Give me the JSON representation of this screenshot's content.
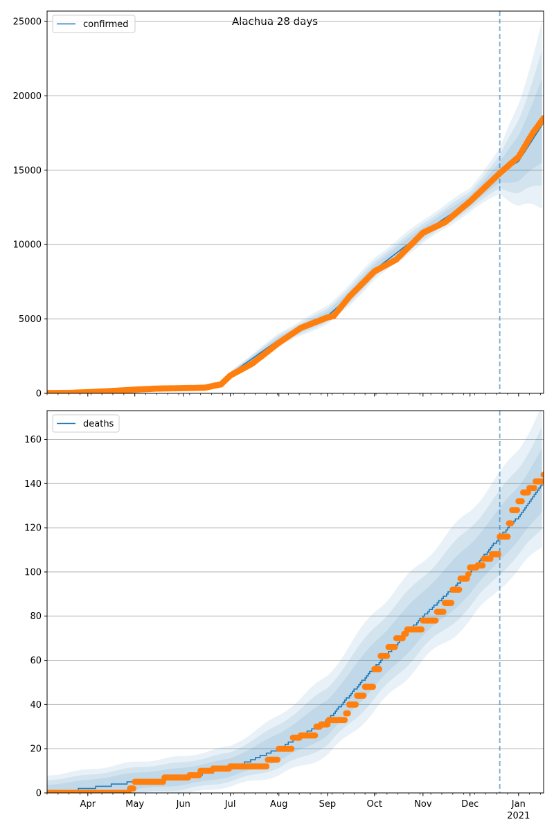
{
  "figure": {
    "title": "Alachua 28 days"
  },
  "chart_data": [
    {
      "type": "line",
      "legend": "confirmed",
      "legend_position": "top-left",
      "grid": "y",
      "xlim": [
        "2020-03-06",
        "2021-01-17"
      ],
      "ylim": [
        0,
        25700
      ],
      "x_tick_labels": [
        {
          "date": "2020-04-01",
          "label": "Apr"
        },
        {
          "date": "2020-05-01",
          "label": "May"
        },
        {
          "date": "2020-06-01",
          "label": "Jun"
        },
        {
          "date": "2020-07-01",
          "label": "Jul"
        },
        {
          "date": "2020-08-01",
          "label": "Aug"
        },
        {
          "date": "2020-09-01",
          "label": "Sep"
        },
        {
          "date": "2020-10-01",
          "label": "Oct"
        },
        {
          "date": "2020-11-01",
          "label": "Nov"
        },
        {
          "date": "2020-12-01",
          "label": "Dec"
        },
        {
          "date": "2021-01-01",
          "label": "Jan"
        }
      ],
      "x_tick_sublabel": "",
      "y_ticks": [
        0,
        5000,
        10000,
        15000,
        20000,
        25000
      ],
      "vline": "2020-12-20",
      "model": [
        [
          "2020-03-06",
          0
        ],
        [
          "2020-04-01",
          80
        ],
        [
          "2020-05-01",
          250
        ],
        [
          "2020-06-01",
          350
        ],
        [
          "2020-06-25",
          480
        ],
        [
          "2020-07-01",
          1300
        ],
        [
          "2020-08-01",
          3600
        ],
        [
          "2020-09-01",
          5200
        ],
        [
          "2020-09-15",
          6500
        ],
        [
          "2020-10-01",
          8300
        ],
        [
          "2020-11-01",
          10800
        ],
        [
          "2020-12-01",
          12900
        ],
        [
          "2020-12-20",
          14800
        ],
        [
          "2021-01-01",
          15600
        ],
        [
          "2021-01-17",
          18200
        ]
      ],
      "band_spread": [
        [
          "2020-03-06",
          0
        ],
        [
          "2020-06-25",
          150
        ],
        [
          "2020-08-01",
          450
        ],
        [
          "2020-09-15",
          800
        ],
        [
          "2020-12-01",
          900
        ],
        [
          "2020-12-20",
          1600
        ],
        [
          "2021-01-17",
          7000
        ]
      ],
      "observed": [
        [
          "2020-03-06",
          20
        ],
        [
          "2020-03-20",
          30
        ],
        [
          "2020-04-01",
          80
        ],
        [
          "2020-04-15",
          150
        ],
        [
          "2020-05-01",
          250
        ],
        [
          "2020-05-15",
          320
        ],
        [
          "2020-06-01",
          350
        ],
        [
          "2020-06-15",
          380
        ],
        [
          "2020-06-20",
          500
        ],
        [
          "2020-06-25",
          600
        ],
        [
          "2020-07-01",
          1200
        ],
        [
          "2020-07-15",
          2000
        ],
        [
          "2020-08-01",
          3400
        ],
        [
          "2020-08-15",
          4400
        ],
        [
          "2020-09-01",
          5100
        ],
        [
          "2020-09-05",
          5200
        ],
        [
          "2020-09-15",
          6500
        ],
        [
          "2020-10-01",
          8200
        ],
        [
          "2020-10-15",
          9000
        ],
        [
          "2020-11-01",
          10800
        ],
        [
          "2020-11-15",
          11500
        ],
        [
          "2020-12-01",
          12900
        ],
        [
          "2020-12-20",
          14800
        ],
        [
          "2021-01-01",
          15900
        ],
        [
          "2021-01-10",
          17500
        ],
        [
          "2021-01-17",
          18500
        ]
      ]
    },
    {
      "type": "line",
      "legend": "deaths",
      "legend_position": "top-left",
      "grid": "y",
      "xlim": [
        "2020-03-06",
        "2021-01-17"
      ],
      "ylim": [
        0,
        173
      ],
      "x_tick_labels": [
        {
          "date": "2020-04-01",
          "label": "Apr"
        },
        {
          "date": "2020-05-01",
          "label": "May"
        },
        {
          "date": "2020-06-01",
          "label": "Jun"
        },
        {
          "date": "2020-07-01",
          "label": "Jul"
        },
        {
          "date": "2020-08-01",
          "label": "Aug"
        },
        {
          "date": "2020-09-01",
          "label": "Sep"
        },
        {
          "date": "2020-10-01",
          "label": "Oct"
        },
        {
          "date": "2020-11-01",
          "label": "Nov"
        },
        {
          "date": "2020-12-01",
          "label": "Dec"
        },
        {
          "date": "2021-01-01",
          "label": "Jan"
        }
      ],
      "x_tick_sublabel": "2021",
      "y_ticks": [
        0,
        20,
        40,
        60,
        80,
        100,
        120,
        140,
        160
      ],
      "vline": "2020-12-20",
      "model": [
        [
          "2020-03-06",
          0
        ],
        [
          "2020-04-01",
          2
        ],
        [
          "2020-05-01",
          5
        ],
        [
          "2020-06-01",
          7
        ],
        [
          "2020-07-01",
          11
        ],
        [
          "2020-08-01",
          20
        ],
        [
          "2020-09-01",
          33
        ],
        [
          "2020-10-01",
          57
        ],
        [
          "2020-11-01",
          80
        ],
        [
          "2020-12-01",
          100
        ],
        [
          "2020-12-20",
          116
        ],
        [
          "2021-01-01",
          125
        ],
        [
          "2021-01-17",
          141
        ]
      ],
      "band_spread": [
        [
          "2020-03-06",
          8
        ],
        [
          "2020-07-01",
          10
        ],
        [
          "2020-08-01",
          15
        ],
        [
          "2020-09-01",
          20
        ],
        [
          "2020-10-01",
          25
        ],
        [
          "2020-11-01",
          25
        ],
        [
          "2020-12-01",
          28
        ],
        [
          "2020-12-20",
          28
        ],
        [
          "2021-01-17",
          35
        ]
      ],
      "observed": [
        [
          "2020-03-06",
          0
        ],
        [
          "2020-04-01",
          0
        ],
        [
          "2020-04-25",
          0
        ],
        [
          "2020-04-28",
          2
        ],
        [
          "2020-05-01",
          5
        ],
        [
          "2020-05-15",
          5
        ],
        [
          "2020-05-20",
          7
        ],
        [
          "2020-06-01",
          7
        ],
        [
          "2020-06-05",
          8
        ],
        [
          "2020-06-10",
          8
        ],
        [
          "2020-06-12",
          10
        ],
        [
          "2020-06-18",
          10
        ],
        [
          "2020-06-20",
          11
        ],
        [
          "2020-06-25",
          11
        ],
        [
          "2020-07-01",
          12
        ],
        [
          "2020-07-20",
          12
        ],
        [
          "2020-07-25",
          15
        ],
        [
          "2020-08-01",
          20
        ],
        [
          "2020-08-05",
          20
        ],
        [
          "2020-08-10",
          25
        ],
        [
          "2020-08-15",
          26
        ],
        [
          "2020-08-20",
          26
        ],
        [
          "2020-08-25",
          30
        ],
        [
          "2020-08-28",
          31
        ],
        [
          "2020-09-01",
          31
        ],
        [
          "2020-09-02",
          33
        ],
        [
          "2020-09-10",
          33
        ],
        [
          "2020-09-13",
          36
        ],
        [
          "2020-09-15",
          40
        ],
        [
          "2020-09-20",
          44
        ],
        [
          "2020-09-25",
          48
        ],
        [
          "2020-10-01",
          56
        ],
        [
          "2020-10-05",
          62
        ],
        [
          "2020-10-10",
          66
        ],
        [
          "2020-10-15",
          70
        ],
        [
          "2020-10-20",
          72
        ],
        [
          "2020-10-22",
          74
        ],
        [
          "2020-10-30",
          74
        ],
        [
          "2020-11-01",
          78
        ],
        [
          "2020-11-05",
          78
        ],
        [
          "2020-11-10",
          82
        ],
        [
          "2020-11-15",
          86
        ],
        [
          "2020-11-20",
          92
        ],
        [
          "2020-11-25",
          97
        ],
        [
          "2020-11-30",
          99
        ],
        [
          "2020-12-01",
          102
        ],
        [
          "2020-12-06",
          103
        ],
        [
          "2020-12-10",
          106
        ],
        [
          "2020-12-15",
          108
        ],
        [
          "2020-12-20",
          116
        ],
        [
          "2020-12-24",
          116
        ],
        [
          "2020-12-26",
          122
        ],
        [
          "2020-12-28",
          128
        ],
        [
          "2021-01-01",
          132
        ],
        [
          "2021-01-04",
          136
        ],
        [
          "2021-01-08",
          138
        ],
        [
          "2021-01-12",
          141
        ],
        [
          "2021-01-17",
          144
        ]
      ]
    }
  ]
}
